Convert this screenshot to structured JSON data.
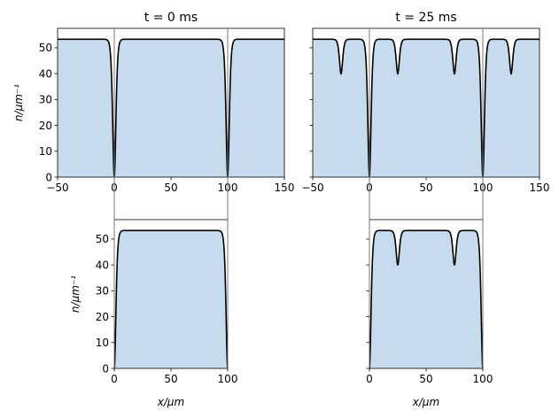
{
  "chart_data": [
    {
      "type": "area",
      "title": "t = 0 ms",
      "xlabel": "",
      "ylabel": "n/μm⁻¹",
      "xlim": [
        -50,
        150
      ],
      "ylim": [
        0,
        57.5
      ],
      "xticks": [
        "−50",
        "0",
        "50",
        "100",
        "150"
      ],
      "yticks": [
        "0",
        "10",
        "20",
        "30",
        "40",
        "50"
      ],
      "plateau": 53.3,
      "dips": [
        {
          "x": 0,
          "min": 0
        },
        {
          "x": 100,
          "min": 0
        }
      ],
      "fill_color": "#c6dbed",
      "line_color": "#000000"
    },
    {
      "type": "area",
      "title": "t = 25 ms",
      "xlabel": "",
      "ylabel": "",
      "xlim": [
        -50,
        150
      ],
      "ylim": [
        0,
        57.5
      ],
      "xticks": [
        "−50",
        "0",
        "50",
        "100",
        "150"
      ],
      "yticks": [],
      "plateau": 53.3,
      "dips": [
        {
          "x": -25,
          "min": 40
        },
        {
          "x": 0,
          "min": 0
        },
        {
          "x": 25,
          "min": 40
        },
        {
          "x": 75,
          "min": 40
        },
        {
          "x": 100,
          "min": 0
        },
        {
          "x": 125,
          "min": 40
        }
      ],
      "fill_color": "#c6dbed",
      "line_color": "#000000"
    },
    {
      "type": "area",
      "title": "",
      "xlabel": "x/μm",
      "ylabel": "n/μm⁻¹",
      "xlim": [
        0,
        100
      ],
      "ylim": [
        0,
        57.5
      ],
      "xticks": [
        "0",
        "50",
        "100"
      ],
      "yticks": [
        "0",
        "10",
        "20",
        "30",
        "40",
        "50"
      ],
      "plateau": 53.3,
      "dips": [
        {
          "x": 0,
          "min": 0
        },
        {
          "x": 100,
          "min": 0
        }
      ],
      "fill_color": "#c6dbed",
      "line_color": "#000000"
    },
    {
      "type": "area",
      "title": "",
      "xlabel": "x/μm",
      "ylabel": "",
      "xlim": [
        0,
        100
      ],
      "ylim": [
        0,
        57.5
      ],
      "xticks": [
        "0",
        "50",
        "100"
      ],
      "yticks": [],
      "plateau": 53.3,
      "dips": [
        {
          "x": 0,
          "min": 0
        },
        {
          "x": 25,
          "min": 40
        },
        {
          "x": 75,
          "min": 40
        },
        {
          "x": 100,
          "min": 0
        }
      ],
      "fill_color": "#c6dbed",
      "line_color": "#000000"
    }
  ]
}
